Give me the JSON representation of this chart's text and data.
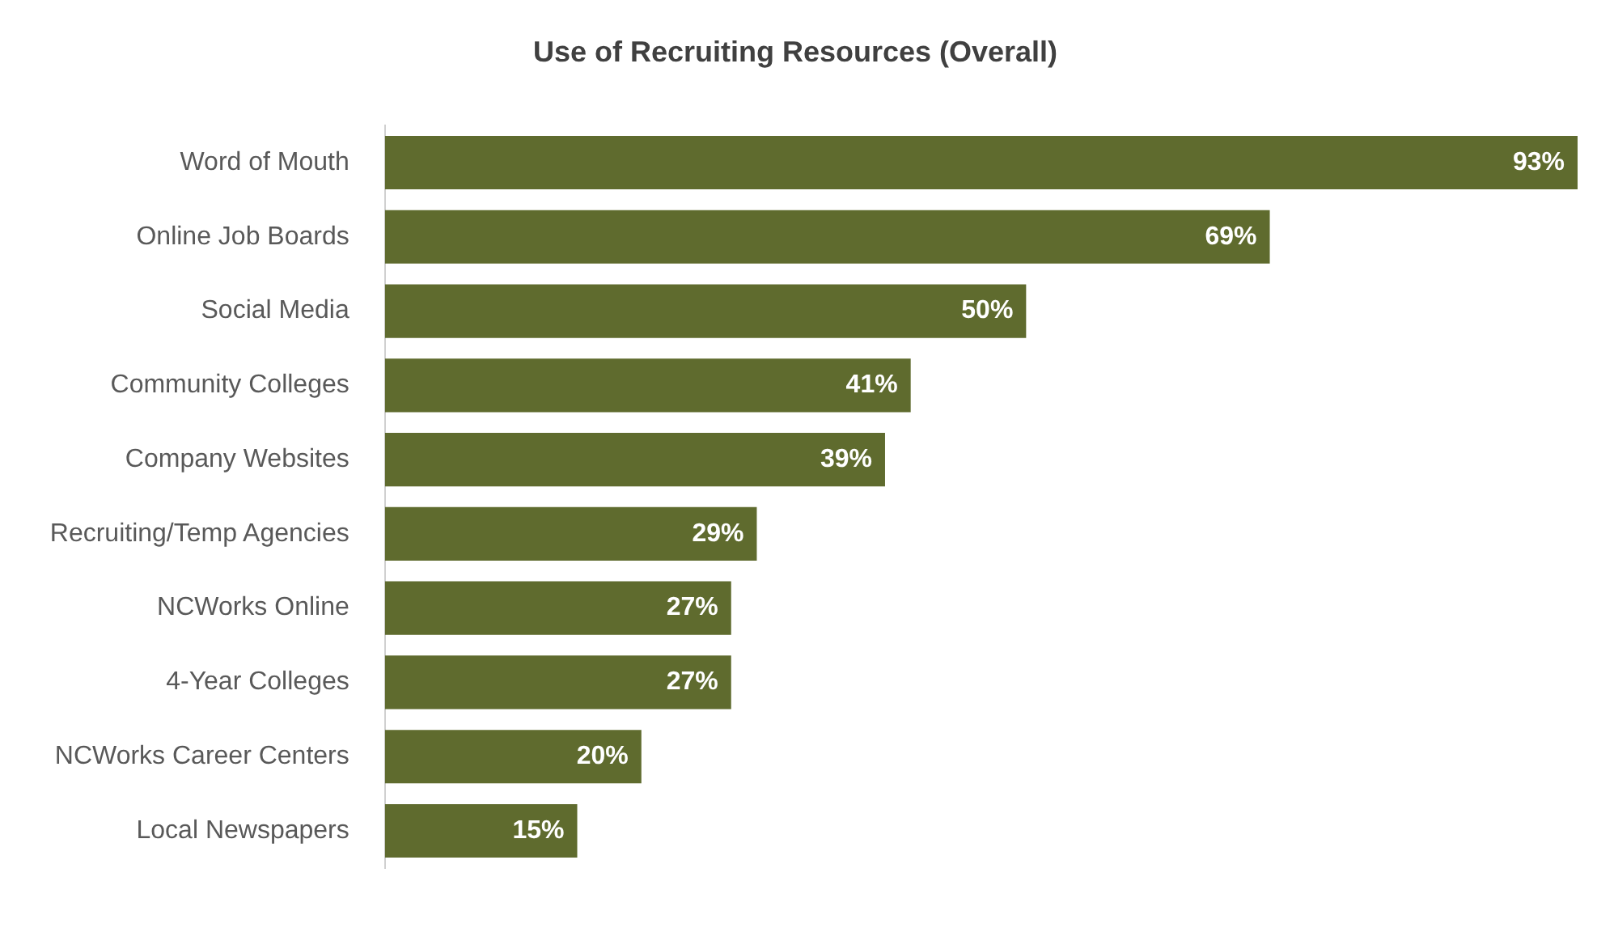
{
  "chart_data": {
    "type": "bar",
    "orientation": "horizontal",
    "title": "Use of Recruiting Resources (Overall)",
    "categories": [
      "Word of Mouth",
      "Online Job Boards",
      "Social Media",
      "Community Colleges",
      "Company Websites",
      "Recruiting/Temp Agencies",
      "NCWorks Online",
      "4-Year Colleges",
      "NCWorks Career Centers",
      "Local Newspapers"
    ],
    "values": [
      93,
      69,
      50,
      41,
      39,
      29,
      27,
      27,
      20,
      15
    ],
    "value_labels": [
      "93%",
      "69%",
      "50%",
      "41%",
      "39%",
      "29%",
      "27%",
      "27%",
      "20%",
      "15%"
    ],
    "color": "#5f6b2e"
  }
}
